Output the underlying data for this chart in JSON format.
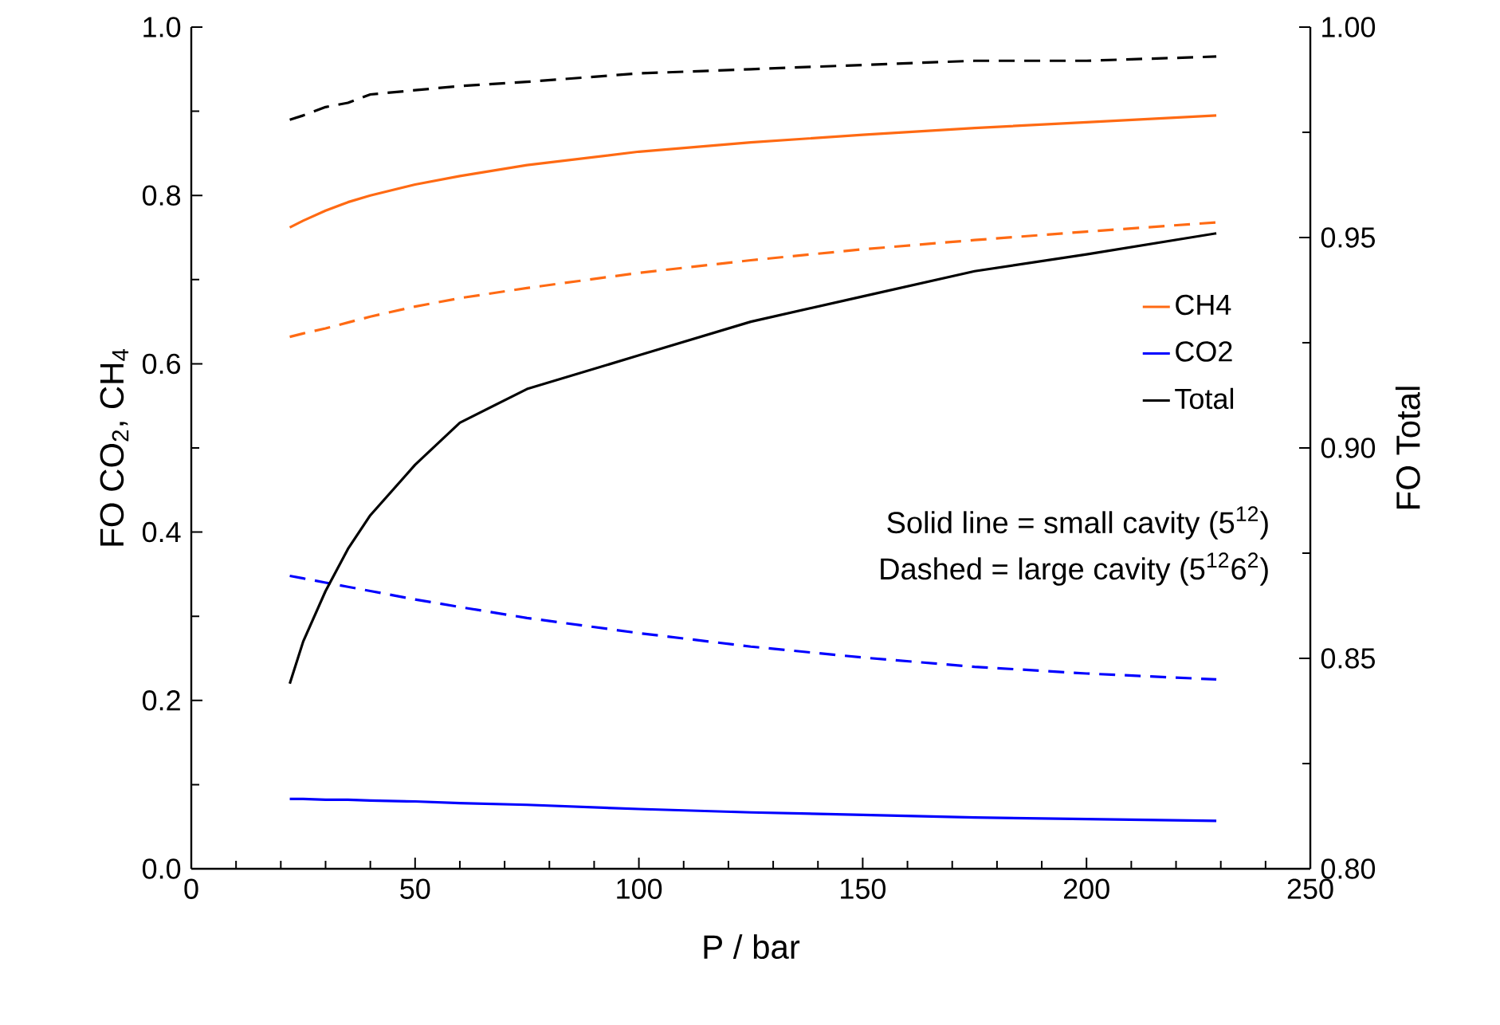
{
  "chart_data": {
    "type": "line",
    "xlabel": "P / bar",
    "ylabel": "FO CO$_{2}$, CH$_{4}$",
    "y2label": "FO Total",
    "x": [
      22,
      25,
      30,
      35,
      40,
      50,
      60,
      75,
      100,
      125,
      150,
      175,
      200,
      229
    ],
    "series": [
      {
        "name": "CH4",
        "color": "#ff6a13",
        "line_style": "solid",
        "values": [
          0.762,
          0.77,
          0.782,
          0.792,
          0.8,
          0.813,
          0.823,
          0.836,
          0.852,
          0.863,
          0.872,
          0.88,
          0.887,
          0.895
        ]
      },
      {
        "name": "CO2",
        "color": "#0000ff",
        "line_style": "solid",
        "values": [
          0.083,
          0.083,
          0.082,
          0.082,
          0.081,
          0.08,
          0.078,
          0.076,
          0.071,
          0.067,
          0.064,
          0.061,
          0.059,
          0.057
        ]
      },
      {
        "name": "Total",
        "color": "#000000",
        "line_style": "solid",
        "axis": "y2",
        "values": [
          0.844,
          0.854,
          0.866,
          0.876,
          0.884,
          0.896,
          0.906,
          0.914,
          0.922,
          0.93,
          0.936,
          0.942,
          0.946,
          0.951
        ]
      },
      {
        "color": "#ff6a13",
        "line_style": "dashed",
        "values": [
          0.632,
          0.636,
          0.642,
          0.649,
          0.656,
          0.668,
          0.678,
          0.69,
          0.708,
          0.723,
          0.736,
          0.747,
          0.757,
          0.768
        ]
      },
      {
        "color": "#0000ff",
        "line_style": "dashed",
        "values": [
          0.348,
          0.345,
          0.34,
          0.335,
          0.33,
          0.32,
          0.311,
          0.298,
          0.28,
          0.264,
          0.251,
          0.24,
          0.232,
          0.225
        ]
      },
      {
        "color": "#000000",
        "line_style": "dashed",
        "axis": "y2",
        "values": [
          0.978,
          0.979,
          0.981,
          0.982,
          0.984,
          0.985,
          0.986,
          0.987,
          0.989,
          0.99,
          0.991,
          0.992,
          0.992,
          0.993
        ]
      }
    ],
    "xlim": [
      0,
      250
    ],
    "xticks": [
      0,
      50,
      100,
      150,
      200,
      250
    ],
    "ylim": [
      0,
      1
    ],
    "yticks": [
      {
        "value": 0,
        "label": "0.0"
      },
      {
        "value": 0.2,
        "label": "0.2"
      },
      {
        "value": 0.4,
        "label": "0.4"
      },
      {
        "value": 0.6,
        "label": "0.6"
      },
      {
        "value": 0.8,
        "label": "0.8"
      },
      {
        "value": 1,
        "label": "1.0"
      }
    ],
    "y2lim": [
      0.8,
      1
    ],
    "y2ticks": [
      {
        "value": 0.8,
        "label": "0.80"
      },
      {
        "value": 0.85,
        "label": "0.85"
      },
      {
        "value": 0.9,
        "label": "0.90"
      },
      {
        "value": 0.95,
        "label": "0.95"
      },
      {
        "value": 1,
        "label": "1.00"
      }
    ],
    "legend": "right",
    "marker": "none",
    "grid": false,
    "annotations": [
      "Solid line = small cavity (5$^{12}$)",
      "Dashed = large cavity (5$^{12}$6$^{2}$)"
    ]
  }
}
